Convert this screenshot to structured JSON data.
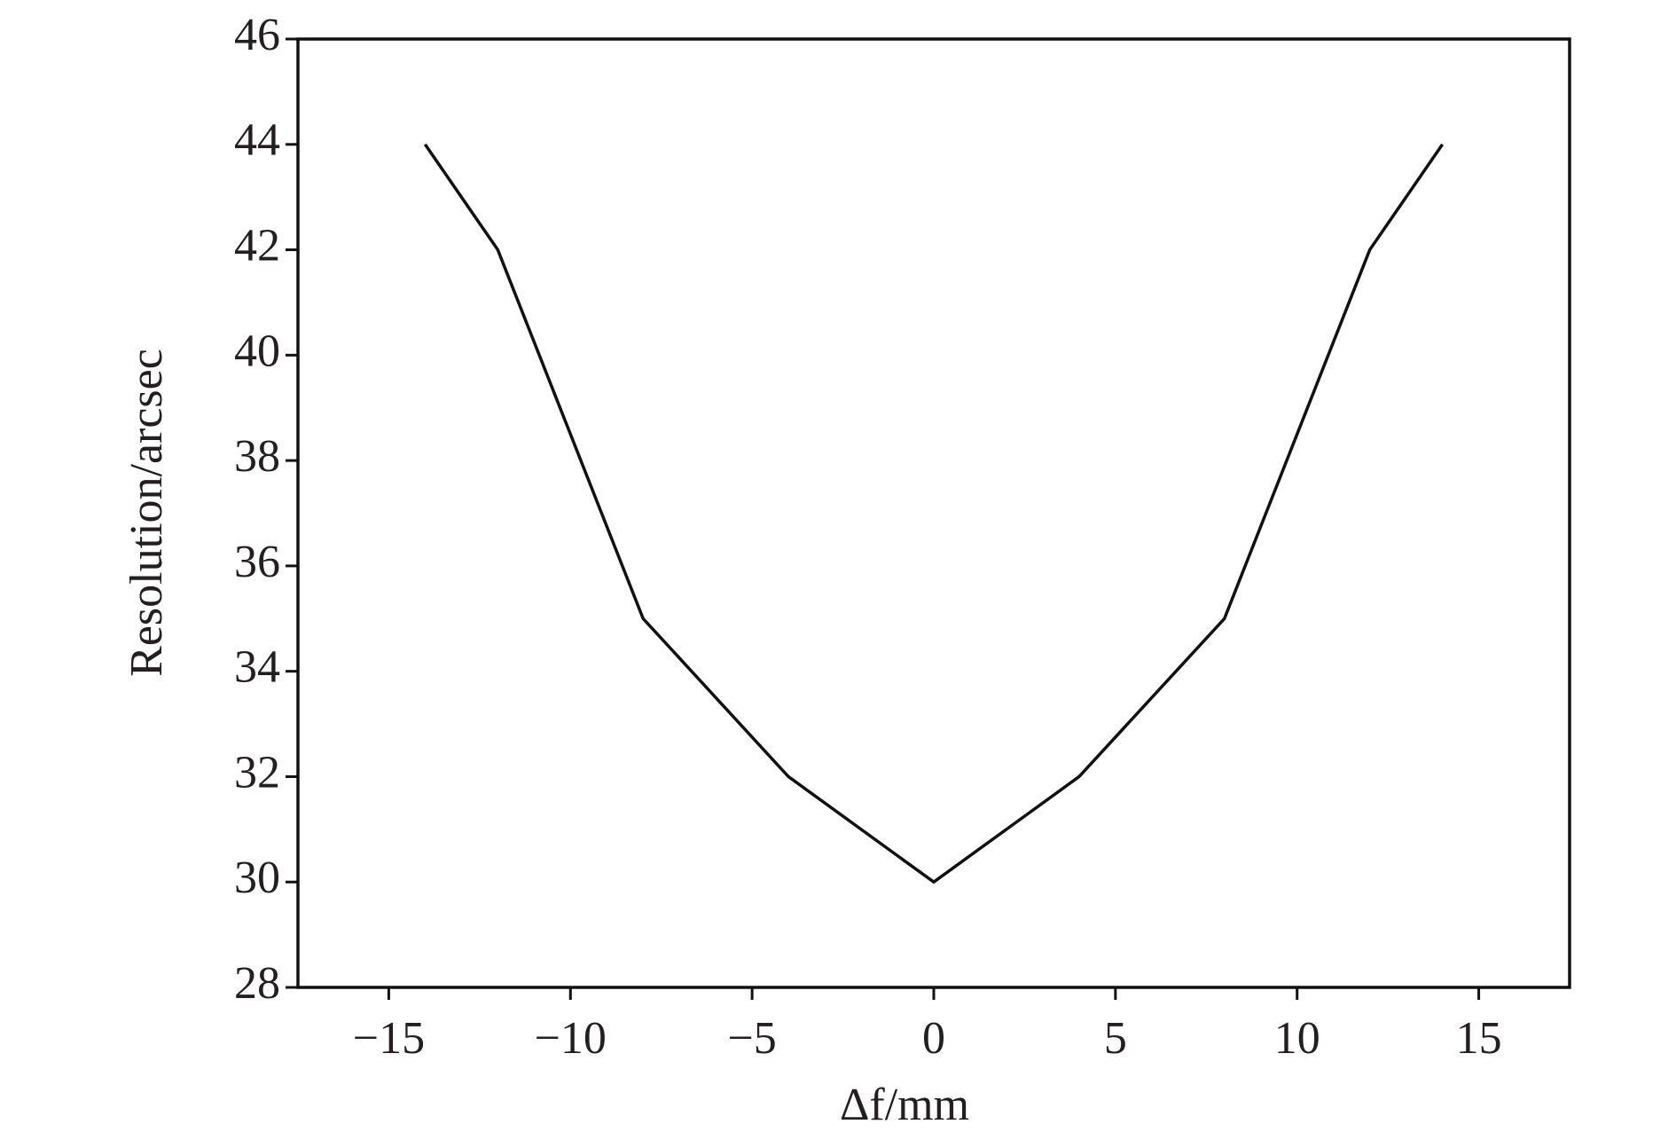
{
  "chart_data": {
    "type": "line",
    "x_label": "Δf/mm",
    "y_label": "Resolution/arcsec",
    "x": [
      -14,
      -12,
      -8,
      -4,
      0,
      4,
      8,
      12,
      14
    ],
    "series": [
      {
        "color": "#111111",
        "values": [
          44,
          42,
          35,
          32,
          30,
          32,
          35,
          42,
          44
        ]
      }
    ],
    "xlim": [
      -17.5,
      17.5
    ],
    "xticks": [
      {
        "value": -15,
        "label": "−15"
      },
      {
        "value": -10,
        "label": "−10"
      },
      {
        "value": -5,
        "label": "−5"
      },
      0,
      5,
      10,
      15
    ],
    "ylim": [
      28,
      46
    ],
    "yticks": [
      28,
      30,
      32,
      34,
      36,
      38,
      40,
      42,
      44,
      46
    ],
    "grid": false
  }
}
